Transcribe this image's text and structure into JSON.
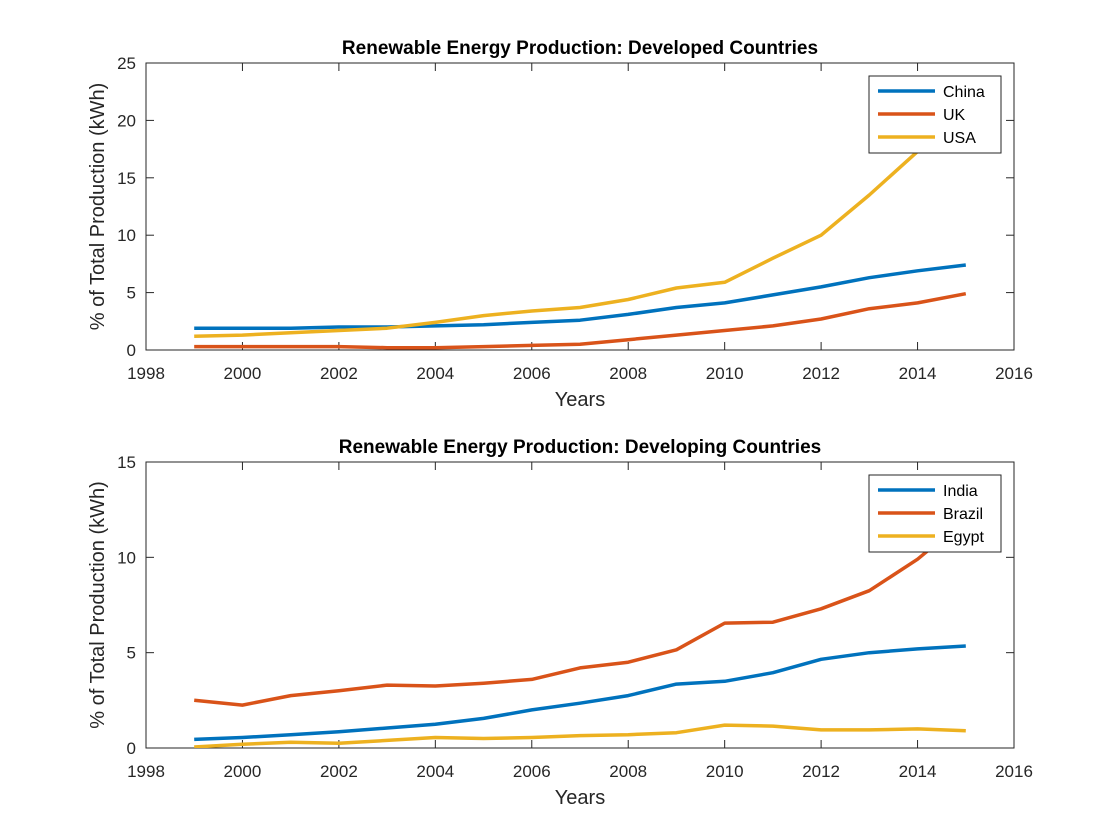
{
  "chart_data": [
    {
      "type": "line",
      "title": "Renewable Energy Production: Developed Countries",
      "xlabel": "Years",
      "ylabel": "% of Total Production (kWh)",
      "xlim": [
        1998,
        2016
      ],
      "ylim": [
        0,
        25
      ],
      "xticks": [
        1998,
        2000,
        2002,
        2004,
        2006,
        2008,
        2010,
        2012,
        2014,
        2016
      ],
      "yticks": [
        0,
        5,
        10,
        15,
        20,
        25
      ],
      "legend_position": "top-right",
      "grid": false,
      "x": [
        1999,
        2000,
        2001,
        2002,
        2003,
        2004,
        2005,
        2006,
        2007,
        2008,
        2009,
        2010,
        2011,
        2012,
        2013,
        2014,
        2015
      ],
      "series": [
        {
          "name": "China",
          "color": "#0072BD",
          "values": [
            1.9,
            1.9,
            1.9,
            2.0,
            2.0,
            2.1,
            2.2,
            2.4,
            2.6,
            3.1,
            3.7,
            4.1,
            4.8,
            5.5,
            6.3,
            6.9,
            7.4
          ]
        },
        {
          "name": "UK",
          "color": "#D95319",
          "values": [
            0.3,
            0.3,
            0.3,
            0.3,
            0.2,
            0.2,
            0.3,
            0.4,
            0.5,
            0.9,
            1.3,
            1.7,
            2.1,
            2.7,
            3.6,
            4.1,
            4.9
          ]
        },
        {
          "name": "USA",
          "color": "#EDB120",
          "values": [
            1.2,
            1.3,
            1.5,
            1.7,
            1.9,
            2.4,
            3.0,
            3.4,
            3.7,
            4.4,
            5.4,
            5.9,
            8.0,
            10.0,
            13.5,
            17.3,
            21.0
          ]
        }
      ]
    },
    {
      "type": "line",
      "title": "Renewable Energy Production: Developing Countries",
      "xlabel": "Years",
      "ylabel": "% of Total Production (kWh)",
      "xlim": [
        1998,
        2016
      ],
      "ylim": [
        0,
        15
      ],
      "xticks": [
        1998,
        2000,
        2002,
        2004,
        2006,
        2008,
        2010,
        2012,
        2014,
        2016
      ],
      "yticks": [
        0,
        5,
        10,
        15
      ],
      "legend_position": "top-right",
      "grid": false,
      "x": [
        1999,
        2000,
        2001,
        2002,
        2003,
        2004,
        2005,
        2006,
        2007,
        2008,
        2009,
        2010,
        2011,
        2012,
        2013,
        2014,
        2015
      ],
      "series": [
        {
          "name": "India",
          "color": "#0072BD",
          "values": [
            0.45,
            0.55,
            0.7,
            0.85,
            1.05,
            1.25,
            1.55,
            2.0,
            2.35,
            2.75,
            3.35,
            3.5,
            3.95,
            4.65,
            5.0,
            5.2,
            5.35
          ]
        },
        {
          "name": "Brazil",
          "color": "#D95319",
          "values": [
            2.5,
            2.25,
            2.75,
            3.0,
            3.3,
            3.25,
            3.4,
            3.6,
            4.2,
            4.5,
            5.15,
            6.55,
            6.6,
            7.3,
            8.25,
            9.9,
            12.0
          ]
        },
        {
          "name": "Egypt",
          "color": "#EDB120",
          "values": [
            0.05,
            0.2,
            0.3,
            0.25,
            0.4,
            0.55,
            0.5,
            0.55,
            0.65,
            0.7,
            0.8,
            1.2,
            1.15,
            0.95,
            0.95,
            1.0,
            0.9
          ]
        }
      ]
    }
  ]
}
